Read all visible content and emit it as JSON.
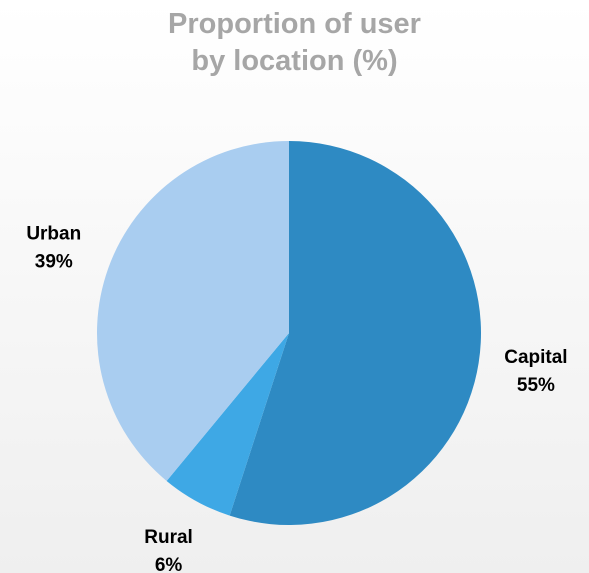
{
  "chart_data": {
    "type": "pie",
    "title": "Proportion of user\nby location (%)",
    "categories": [
      "Capital",
      "Rural",
      "Urban"
    ],
    "values": [
      55,
      6,
      39
    ],
    "value_labels": [
      "55%",
      "6%",
      "39%"
    ],
    "colors": [
      "#2e8ac3",
      "#3ea8e5",
      "#a9cdf0"
    ]
  }
}
